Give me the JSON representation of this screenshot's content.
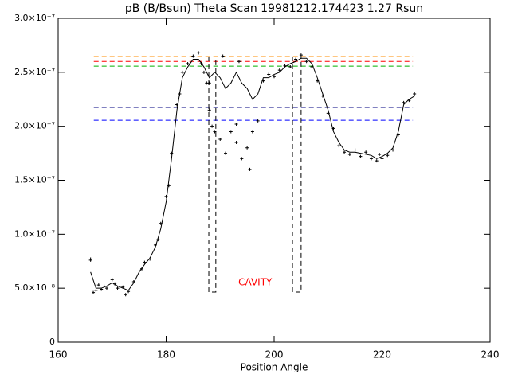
{
  "chart_data": {
    "type": "line",
    "title": "pB (B/Bsun) Theta Scan 19981212.174423 1.27 Rsun",
    "xlabel": "Position Angle",
    "xlim": [
      160,
      240
    ],
    "xticks": [
      160,
      180,
      200,
      220,
      240
    ],
    "ylim": [
      0,
      3e-07
    ],
    "yticks": [
      0,
      {
        "value": 5e-08,
        "label": "5.0×10⁻⁸"
      },
      {
        "value": 1e-07,
        "label": "1.0×10⁻⁷"
      },
      {
        "value": 1.5e-07,
        "label": "1.5×10⁻⁷"
      },
      {
        "value": 2e-07,
        "label": "2.0×10⁻⁷"
      },
      {
        "value": 2.5e-07,
        "label": "2.5×10⁻⁷"
      },
      {
        "value": 3e-07,
        "label": "3.0×10⁻⁷"
      }
    ],
    "series": [
      {
        "type": "line",
        "color": "#000000",
        "x": [
          166,
          167,
          168,
          169,
          170,
          171,
          172,
          173,
          174,
          175,
          176,
          177,
          178,
          179,
          180,
          181,
          182,
          183,
          184,
          185,
          186,
          187,
          188,
          189,
          190,
          191,
          192,
          193,
          194,
          195,
          196,
          197,
          198,
          199,
          200,
          201,
          202,
          203,
          204,
          205,
          206,
          207,
          208,
          209,
          210,
          211,
          212,
          213,
          214,
          215,
          216,
          217,
          218,
          219,
          220,
          221,
          222,
          223,
          224,
          225,
          226
        ],
        "values": [
          6.5e-08,
          5e-08,
          5e-08,
          5.2e-08,
          5.5e-08,
          5.2e-08,
          5e-08,
          4.8e-08,
          5.5e-08,
          6.5e-08,
          7.2e-08,
          7.8e-08,
          8.8e-08,
          1.05e-07,
          1.3e-07,
          1.7e-07,
          2.15e-07,
          2.45e-07,
          2.55e-07,
          2.62e-07,
          2.62e-07,
          2.55e-07,
          2.45e-07,
          2.5e-07,
          2.45e-07,
          2.35e-07,
          2.4e-07,
          2.5e-07,
          2.4e-07,
          2.35e-07,
          2.25e-07,
          2.3e-07,
          2.45e-07,
          2.45e-07,
          2.48e-07,
          2.5e-07,
          2.55e-07,
          2.58e-07,
          2.6e-07,
          2.63e-07,
          2.63e-07,
          2.58e-07,
          2.45e-07,
          2.3e-07,
          2.15e-07,
          1.95e-07,
          1.85e-07,
          1.78e-07,
          1.76e-07,
          1.76e-07,
          1.75e-07,
          1.74e-07,
          1.73e-07,
          1.7e-07,
          1.72e-07,
          1.75e-07,
          1.8e-07,
          1.95e-07,
          2.2e-07,
          2.25e-07,
          2.28e-07
        ]
      },
      {
        "type": "scatter",
        "color": "#000000",
        "x": [
          166,
          166,
          166.5,
          167,
          167.5,
          168,
          168.5,
          169,
          170,
          170.5,
          171,
          172,
          172.5,
          173,
          174,
          175,
          175.5,
          176,
          177,
          178,
          178.5,
          179,
          180,
          180.5,
          181,
          182,
          182.5,
          183,
          184,
          185,
          186,
          186.5,
          187,
          187.5,
          188,
          188,
          188.5,
          189,
          190,
          190.5,
          191,
          192,
          193,
          193,
          193.5,
          194,
          195,
          195.5,
          196,
          197,
          198,
          199,
          200,
          201,
          202,
          203,
          204,
          205,
          206,
          207,
          208,
          209,
          210,
          211,
          212,
          213,
          214,
          215,
          216,
          217,
          218,
          219,
          219.5,
          220,
          221,
          222,
          223,
          224,
          225,
          226
        ],
        "values": [
          7.7e-08,
          7.6e-08,
          4.6e-08,
          4.8e-08,
          5.3e-08,
          4.9e-08,
          5.2e-08,
          5e-08,
          5.8e-08,
          5.4e-08,
          5e-08,
          5.1e-08,
          4.4e-08,
          4.7e-08,
          5.6e-08,
          6.6e-08,
          6.8e-08,
          7.4e-08,
          7.7e-08,
          9e-08,
          9.5e-08,
          1.1e-07,
          1.35e-07,
          1.45e-07,
          1.75e-07,
          2.2e-07,
          2.3e-07,
          2.5e-07,
          2.58e-07,
          2.65e-07,
          2.68e-07,
          2.58e-07,
          2.5e-07,
          2.4e-07,
          2.15e-07,
          2.4e-07,
          2e-07,
          1.95e-07,
          1.88e-07,
          2.65e-07,
          1.75e-07,
          1.95e-07,
          1.85e-07,
          2.02e-07,
          2.6e-07,
          1.7e-07,
          1.8e-07,
          1.6e-07,
          1.95e-07,
          2.05e-07,
          2.42e-07,
          2.48e-07,
          2.46e-07,
          2.52e-07,
          2.56e-07,
          2.55e-07,
          2.62e-07,
          2.66e-07,
          2.6e-07,
          2.55e-07,
          2.42e-07,
          2.28e-07,
          2.12e-07,
          1.98e-07,
          1.82e-07,
          1.76e-07,
          1.74e-07,
          1.78e-07,
          1.72e-07,
          1.76e-07,
          1.7e-07,
          1.68e-07,
          1.74e-07,
          1.7e-07,
          1.73e-07,
          1.78e-07,
          1.92e-07,
          2.22e-07,
          2.24e-07,
          2.3e-07
        ]
      }
    ],
    "hlines": [
      {
        "value": 2.646e-07,
        "color": "#ff8c00",
        "x": [
          166.6,
          225.7
        ]
      },
      {
        "value": 2.6e-07,
        "color": "#ff0000",
        "x": [
          166.6,
          225.7
        ]
      },
      {
        "value": 2.557e-07,
        "color": "#00b000",
        "x": [
          166.6,
          225.7
        ]
      },
      {
        "value": 2.174e-07,
        "color": "#000080",
        "x": [
          166.6,
          225.7
        ]
      },
      {
        "value": 2.056e-07,
        "color": "#0000ff",
        "x": [
          166.6,
          225.7
        ]
      }
    ],
    "regions": [
      {
        "x": [
          187.9,
          189.2
        ],
        "y": [
          4.64e-08,
          2.646e-07
        ]
      },
      {
        "x": [
          203.4,
          205.0
        ],
        "y": [
          4.64e-08,
          2.646e-07
        ]
      }
    ],
    "annotation": {
      "text": "CAVITY",
      "x": 196.5,
      "y": 5.53e-08,
      "color": "#ff0000"
    }
  }
}
